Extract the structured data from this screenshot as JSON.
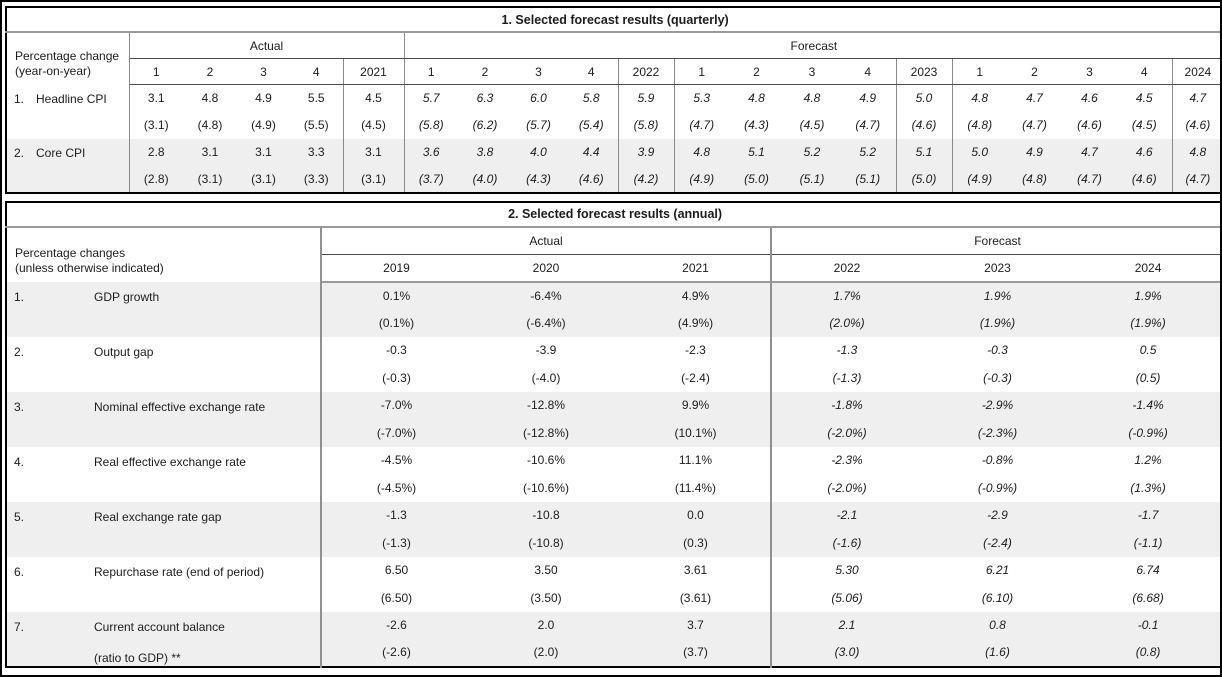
{
  "style": {
    "stripe_color": "#efefef",
    "outer_border_color": "#000000",
    "grid_gray": "#8a8a8a",
    "rule_gray": "#9a9a9a",
    "text_color": "#1c1c1c"
  },
  "table1": {
    "title": "1. Selected forecast results (quarterly)",
    "row_header": [
      "Percentage change",
      "(year-on-year)"
    ],
    "groups": [
      "Actual",
      "Forecast"
    ],
    "columns": [
      "1",
      "2",
      "3",
      "4",
      "2021",
      "1",
      "2",
      "3",
      "4",
      "2022",
      "1",
      "2",
      "3",
      "4",
      "2023",
      "1",
      "2",
      "3",
      "4",
      "2024"
    ],
    "rows": [
      {
        "num": "1.",
        "label": "Headline CPI",
        "values": [
          "3.1",
          "4.8",
          "4.9",
          "5.5",
          "4.5",
          "5.7",
          "6.3",
          "6.0",
          "5.8",
          "5.9",
          "5.3",
          "4.8",
          "4.8",
          "4.9",
          "5.0",
          "4.8",
          "4.7",
          "4.6",
          "4.5",
          "4.7"
        ],
        "parens": [
          "(3.1)",
          "(4.8)",
          "(4.9)",
          "(5.5)",
          "(4.5)",
          "(5.8)",
          "(6.2)",
          "(5.7)",
          "(5.4)",
          "(5.8)",
          "(4.7)",
          "(4.3)",
          "(4.5)",
          "(4.7)",
          "(4.6)",
          "(4.8)",
          "(4.7)",
          "(4.6)",
          "(4.5)",
          "(4.6)"
        ]
      },
      {
        "num": "2.",
        "label": "Core CPI",
        "values": [
          "2.8",
          "3.1",
          "3.1",
          "3.3",
          "3.1",
          "3.6",
          "3.8",
          "4.0",
          "4.4",
          "3.9",
          "4.8",
          "5.1",
          "5.2",
          "5.2",
          "5.1",
          "5.0",
          "4.9",
          "4.7",
          "4.6",
          "4.8"
        ],
        "parens": [
          "(2.8)",
          "(3.1)",
          "(3.1)",
          "(3.3)",
          "(3.1)",
          "(3.7)",
          "(4.0)",
          "(4.3)",
          "(4.6)",
          "(4.2)",
          "(4.9)",
          "(5.0)",
          "(5.1)",
          "(5.1)",
          "(5.0)",
          "(4.9)",
          "(4.8)",
          "(4.7)",
          "(4.6)",
          "(4.7)"
        ]
      }
    ]
  },
  "table2": {
    "title": "2. Selected forecast results (annual)",
    "row_header": [
      "Percentage changes",
      "(unless otherwise indicated)"
    ],
    "groups": [
      "Actual",
      "Forecast"
    ],
    "columns": [
      "2019",
      "2020",
      "2021",
      "2022",
      "2023",
      "2024"
    ],
    "rows": [
      {
        "num": "1.",
        "label": "GDP growth",
        "label2": "",
        "values": [
          "0.1%",
          "-6.4%",
          "4.9%",
          "1.7%",
          "1.9%",
          "1.9%"
        ],
        "parens": [
          "(0.1%)",
          "(-6.4%)",
          "(4.9%)",
          "(2.0%)",
          "(1.9%)",
          "(1.9%)"
        ]
      },
      {
        "num": "2.",
        "label": "Output gap",
        "label2": "",
        "values": [
          "-0.3",
          "-3.9",
          "-2.3",
          "-1.3",
          "-0.3",
          "0.5"
        ],
        "parens": [
          "(-0.3)",
          "(-4.0)",
          "(-2.4)",
          "(-1.3)",
          "(-0.3)",
          "(0.5)"
        ]
      },
      {
        "num": "3.",
        "label": "Nominal effective exchange rate",
        "label2": "",
        "values": [
          "-7.0%",
          "-12.8%",
          "9.9%",
          "-1.8%",
          "-2.9%",
          "-1.4%"
        ],
        "parens": [
          "(-7.0%)",
          "(-12.8%)",
          "(10.1%)",
          "(-2.0%)",
          "(-2.3%)",
          "(-0.9%)"
        ]
      },
      {
        "num": "4.",
        "label": "Real effective exchange rate",
        "label2": "",
        "values": [
          "-4.5%",
          "-10.6%",
          "11.1%",
          "-2.3%",
          "-0.8%",
          "1.2%"
        ],
        "parens": [
          "(-4.5%)",
          "(-10.6%)",
          "(11.4%)",
          "(-2.0%)",
          "(-0.9%)",
          "(1.3%)"
        ]
      },
      {
        "num": "5.",
        "label": "Real exchange rate gap",
        "label2": "",
        "values": [
          "-1.3",
          "-10.8",
          "0.0",
          "-2.1",
          "-2.9",
          "-1.7"
        ],
        "parens": [
          "(-1.3)",
          "(-10.8)",
          "(0.3)",
          "(-1.6)",
          "(-2.4)",
          "(-1.1)"
        ]
      },
      {
        "num": "6.",
        "label": "Repurchase rate (end of period)",
        "label2": "",
        "values": [
          "6.50",
          "3.50",
          "3.61",
          "5.30",
          "6.21",
          "6.74"
        ],
        "parens": [
          "(6.50)",
          "(3.50)",
          "(3.61)",
          "(5.06)",
          "(6.10)",
          "(6.68)"
        ]
      },
      {
        "num": "7.",
        "label": "Current account balance",
        "label2": "(ratio to GDP) **",
        "values": [
          "-2.6",
          "2.0",
          "3.7",
          "2.1",
          "0.8",
          "-0.1"
        ],
        "parens": [
          "(-2.6)",
          "(2.0)",
          "(3.7)",
          "(3.0)",
          "(1.6)",
          "(0.8)"
        ]
      }
    ]
  }
}
